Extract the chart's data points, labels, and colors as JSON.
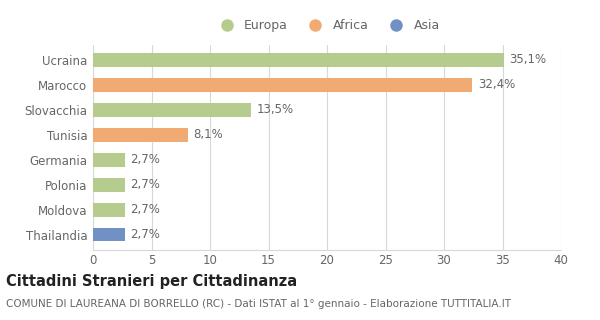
{
  "categories": [
    "Ucraina",
    "Marocco",
    "Slovacchia",
    "Tunisia",
    "Germania",
    "Polonia",
    "Moldova",
    "Thailandia"
  ],
  "values": [
    35.1,
    32.4,
    13.5,
    8.1,
    2.7,
    2.7,
    2.7,
    2.7
  ],
  "labels": [
    "35,1%",
    "32,4%",
    "13,5%",
    "8,1%",
    "2,7%",
    "2,7%",
    "2,7%",
    "2,7%"
  ],
  "colors": [
    "#b5cc8e",
    "#f0aa72",
    "#b5cc8e",
    "#f0aa72",
    "#b5cc8e",
    "#b5cc8e",
    "#b5cc8e",
    "#7191c4"
  ],
  "legend_labels": [
    "Europa",
    "Africa",
    "Asia"
  ],
  "legend_colors": [
    "#b5cc8e",
    "#f0aa72",
    "#7191c4"
  ],
  "title": "Cittadini Stranieri per Cittadinanza",
  "subtitle": "COMUNE DI LAUREANA DI BORRELLO (RC) - Dati ISTAT al 1° gennaio - Elaborazione TUTTITALIA.IT",
  "xlim": [
    0,
    40
  ],
  "xticks": [
    0,
    5,
    10,
    15,
    20,
    25,
    30,
    35,
    40
  ],
  "bar_height": 0.55,
  "background_color": "#ffffff",
  "grid_color": "#d8d8d8",
  "label_fontsize": 8.5,
  "tick_fontsize": 8.5,
  "title_fontsize": 10.5,
  "subtitle_fontsize": 7.5
}
